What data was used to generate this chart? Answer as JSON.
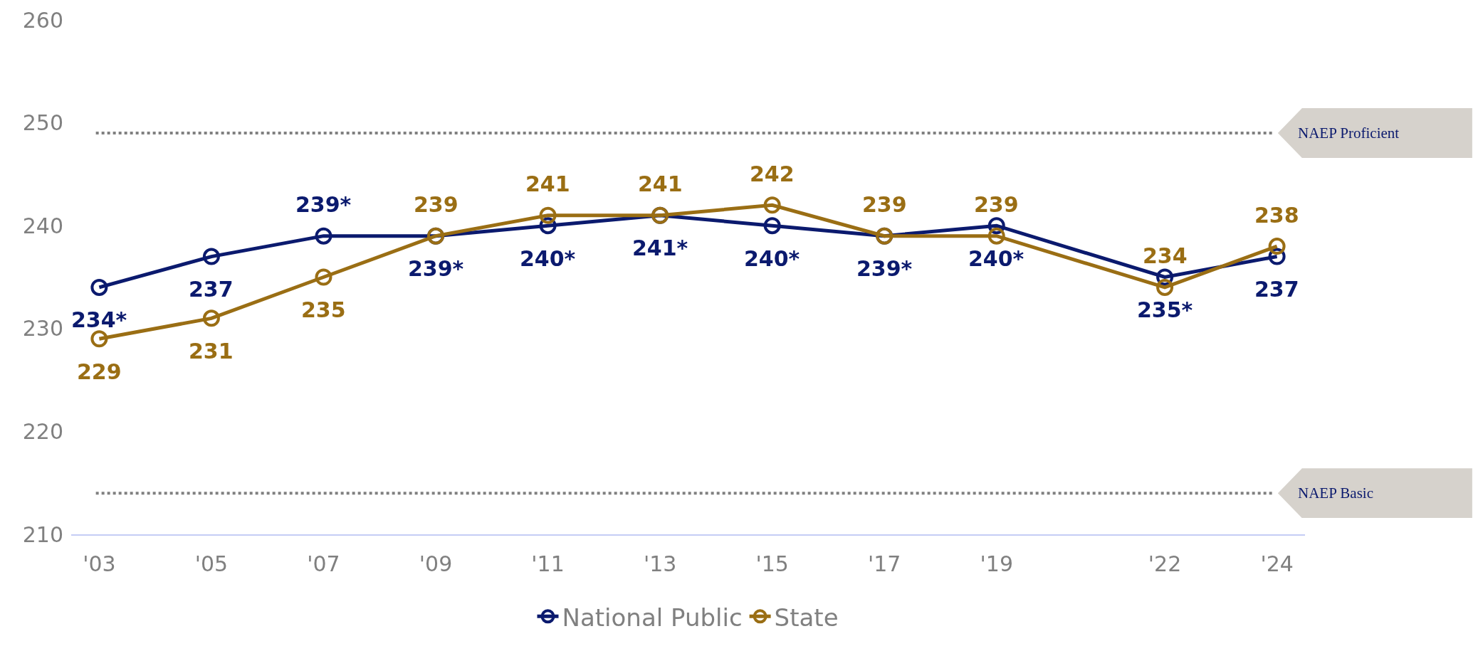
{
  "chart_data": {
    "type": "line",
    "x": [
      2003,
      2005,
      2007,
      2009,
      2011,
      2013,
      2015,
      2017,
      2019,
      2022,
      2024
    ],
    "series": [
      {
        "name": "National Public",
        "color": "#0b1a6e",
        "values": [
          234,
          237,
          239,
          239,
          240,
          241,
          240,
          239,
          240,
          235,
          237
        ],
        "value_labels": [
          "234*",
          "237",
          "239*",
          "239*",
          "240*",
          "241*",
          "240*",
          "239*",
          "240*",
          "235*",
          "237"
        ]
      },
      {
        "name": "State",
        "color": "#9a6e14",
        "values": [
          229,
          231,
          235,
          239,
          241,
          241,
          242,
          239,
          239,
          234,
          238
        ],
        "value_labels": [
          "229",
          "231",
          "235",
          "239",
          "241",
          "241",
          "242",
          "239",
          "239",
          "234",
          "238"
        ]
      }
    ],
    "xlim": [
      2002.5,
      2024.5
    ],
    "xticks": [
      {
        "value": 2003,
        "label": "'03"
      },
      {
        "value": 2005,
        "label": "'05"
      },
      {
        "value": 2007,
        "label": "'07"
      },
      {
        "value": 2009,
        "label": "'09"
      },
      {
        "value": 2011,
        "label": "'11"
      },
      {
        "value": 2013,
        "label": "'13"
      },
      {
        "value": 2015,
        "label": "'15"
      },
      {
        "value": 2017,
        "label": "'17"
      },
      {
        "value": 2019,
        "label": "'19"
      },
      {
        "value": 2022,
        "label": "'22"
      },
      {
        "value": 2024,
        "label": "'24"
      }
    ],
    "ylim": [
      210,
      260
    ],
    "yticks": [
      210,
      220,
      230,
      240,
      250,
      260
    ],
    "ref_lines": [
      {
        "axis": "y",
        "value": 249,
        "label": "NAEP Proficient",
        "color": "#808080",
        "line_style": "dotted"
      },
      {
        "axis": "y",
        "value": 214,
        "label": "NAEP Basic",
        "color": "#808080",
        "line_style": "dotted"
      }
    ],
    "grid": false,
    "legend": "bottom",
    "marker": "circle",
    "line_style": "solid"
  }
}
